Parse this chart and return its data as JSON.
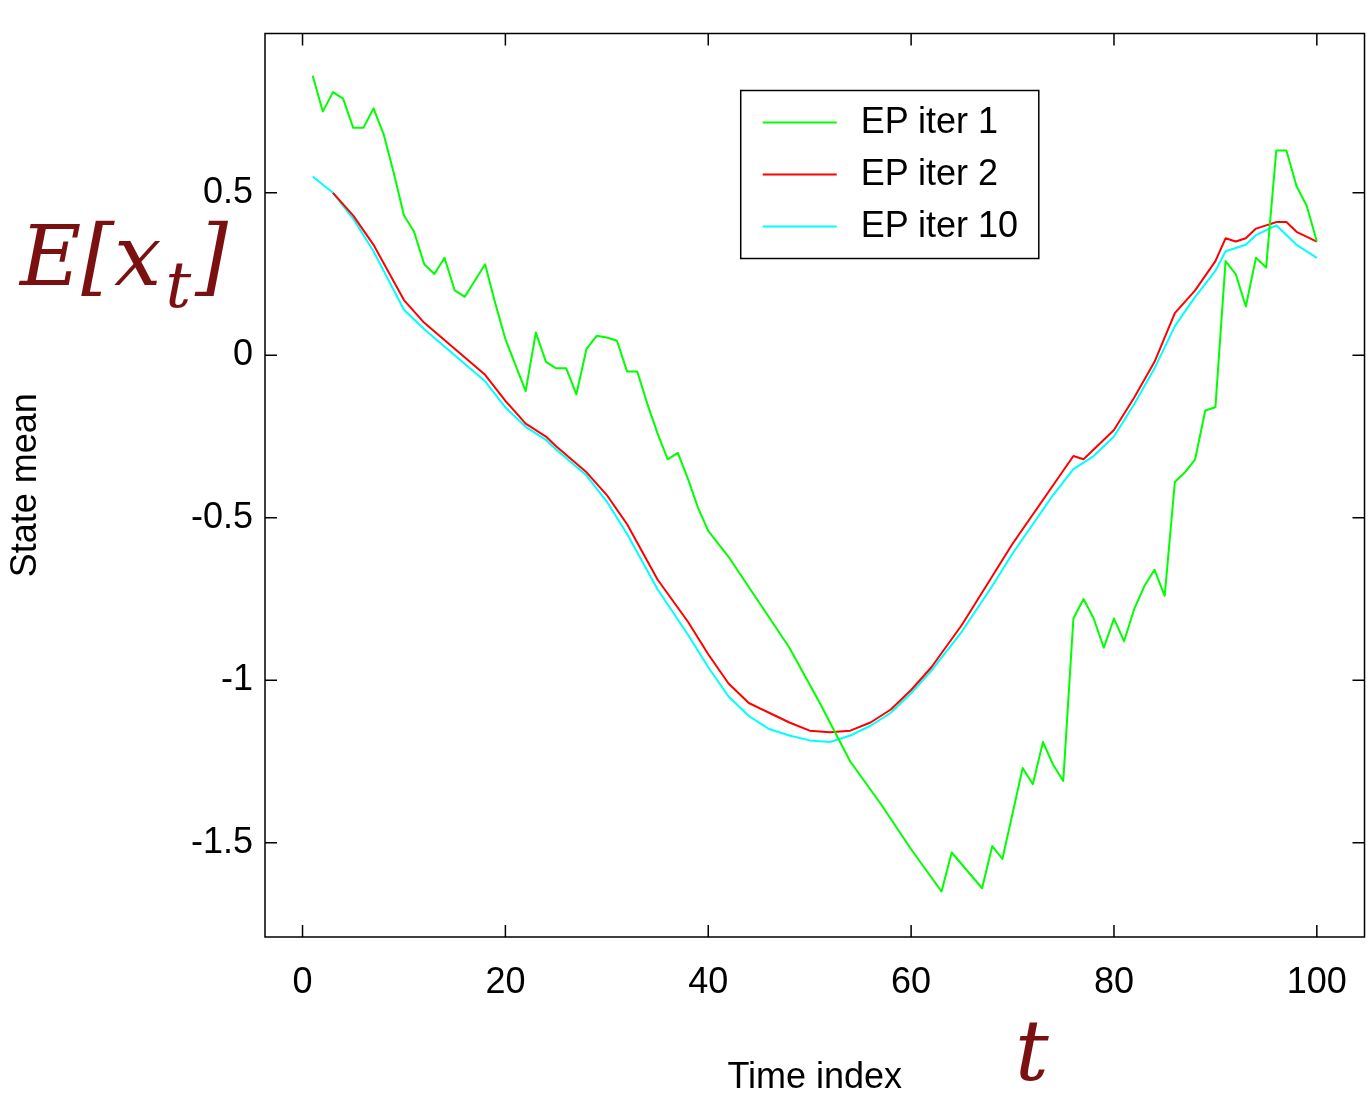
{
  "chart_data": {
    "type": "line",
    "xlabel": "Time index",
    "ylabel": "State mean",
    "xlim": [
      -3.7,
      104.7
    ],
    "ylim": [
      -1.79,
      0.99
    ],
    "xticks": [
      0,
      20,
      40,
      60,
      80,
      100
    ],
    "yticks": [
      -1.5,
      -1,
      -0.5,
      0,
      0.5
    ],
    "grid": false,
    "legend": "top",
    "marker": "none",
    "line_style": "solid",
    "annotations": [
      "E[x$_{t}$]",
      "t"
    ],
    "series": [
      {
        "name": "EP iter 1",
        "color": "#00ff00",
        "x": [
          1,
          2,
          3,
          4,
          5,
          6,
          7,
          8,
          9,
          10,
          11,
          12,
          13,
          14,
          15,
          16,
          17,
          18,
          19,
          20,
          21,
          22,
          23,
          24,
          25,
          26,
          27,
          28,
          29,
          30,
          31,
          32,
          33,
          34,
          35,
          36,
          37,
          38,
          39,
          40,
          42,
          45,
          48,
          51,
          54,
          57,
          60,
          63,
          64,
          67,
          68,
          69,
          70,
          71,
          72,
          73,
          74,
          75,
          76,
          77,
          78,
          79,
          80,
          81,
          82,
          83,
          84,
          85,
          86,
          87,
          88,
          89,
          90,
          91,
          92,
          93,
          94,
          95,
          96,
          97,
          98,
          99,
          100
        ],
        "values": [
          0.86,
          0.75,
          0.81,
          0.79,
          0.7,
          0.7,
          0.76,
          0.68,
          0.56,
          0.43,
          0.38,
          0.28,
          0.25,
          0.3,
          0.2,
          0.18,
          0.23,
          0.28,
          0.16,
          0.05,
          -0.03,
          -0.11,
          0.07,
          -0.02,
          -0.04,
          -0.04,
          -0.12,
          0.02,
          0.06,
          0.055,
          0.045,
          -0.05,
          -0.05,
          -0.15,
          -0.24,
          -0.32,
          -0.3,
          -0.38,
          -0.47,
          -0.54,
          -0.62,
          -0.76,
          -0.9,
          -1.07,
          -1.25,
          -1.38,
          -1.52,
          -1.65,
          -1.53,
          -1.64,
          -1.51,
          -1.55,
          -1.41,
          -1.27,
          -1.32,
          -1.19,
          -1.26,
          -1.31,
          -0.81,
          -0.75,
          -0.81,
          -0.9,
          -0.81,
          -0.88,
          -0.78,
          -0.71,
          -0.66,
          -0.74,
          -0.39,
          -0.36,
          -0.32,
          -0.17,
          -0.16,
          0.29,
          0.25,
          0.15,
          0.3,
          0.27,
          0.63,
          0.63,
          0.52,
          0.46,
          0.35
        ]
      },
      {
        "name": "EP iter 2",
        "color": "#ff0000",
        "x": [
          3,
          5,
          7,
          10,
          12,
          15,
          18,
          20,
          22,
          24,
          25,
          28,
          30,
          32,
          35,
          38,
          40,
          42,
          44,
          46,
          48,
          50,
          52,
          54,
          56,
          58,
          60,
          62,
          65,
          68,
          70,
          72,
          74,
          76,
          77,
          78,
          80,
          82,
          84,
          86,
          88,
          90,
          91,
          92,
          93,
          94,
          96,
          97,
          98,
          100
        ],
        "values": [
          0.5,
          0.43,
          0.34,
          0.17,
          0.1,
          0.02,
          -0.06,
          -0.14,
          -0.21,
          -0.25,
          -0.28,
          -0.36,
          -0.43,
          -0.52,
          -0.69,
          -0.82,
          -0.92,
          -1.01,
          -1.07,
          -1.1,
          -1.13,
          -1.155,
          -1.16,
          -1.155,
          -1.13,
          -1.09,
          -1.03,
          -0.96,
          -0.83,
          -0.68,
          -0.58,
          -0.49,
          -0.4,
          -0.31,
          -0.32,
          -0.29,
          -0.23,
          -0.13,
          -0.02,
          0.13,
          0.2,
          0.29,
          0.36,
          0.35,
          0.36,
          0.39,
          0.41,
          0.41,
          0.38,
          0.35
        ]
      },
      {
        "name": "EP iter 10",
        "color": "#00ffff",
        "x": [
          1,
          3,
          5,
          7,
          10,
          12,
          15,
          18,
          20,
          22,
          24,
          25,
          28,
          30,
          32,
          35,
          38,
          40,
          42,
          44,
          46,
          48,
          50,
          52,
          54,
          56,
          58,
          60,
          62,
          65,
          68,
          70,
          72,
          74,
          76,
          78,
          80,
          82,
          84,
          86,
          88,
          90,
          91,
          92,
          93,
          94,
          96,
          98,
          100
        ],
        "values": [
          0.55,
          0.5,
          0.42,
          0.32,
          0.14,
          0.08,
          0.0,
          -0.08,
          -0.16,
          -0.22,
          -0.26,
          -0.29,
          -0.37,
          -0.45,
          -0.55,
          -0.72,
          -0.86,
          -0.96,
          -1.05,
          -1.11,
          -1.15,
          -1.17,
          -1.185,
          -1.19,
          -1.17,
          -1.14,
          -1.1,
          -1.04,
          -0.97,
          -0.85,
          -0.71,
          -0.61,
          -0.52,
          -0.43,
          -0.35,
          -0.31,
          -0.25,
          -0.15,
          -0.04,
          0.09,
          0.18,
          0.26,
          0.32,
          0.33,
          0.34,
          0.37,
          0.4,
          0.34,
          0.3
        ]
      }
    ]
  }
}
